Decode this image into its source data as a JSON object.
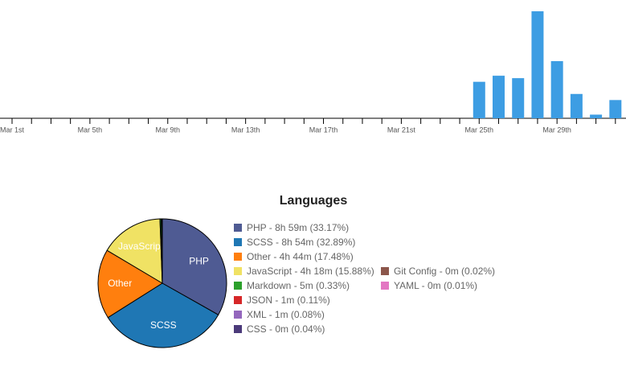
{
  "chart_data": [
    {
      "type": "bar",
      "categories": [
        "Mar 1st",
        null,
        null,
        null,
        "Mar 5th",
        null,
        null,
        null,
        "Mar 9th",
        null,
        null,
        null,
        "Mar 13th",
        null,
        null,
        null,
        "Mar 17th",
        null,
        null,
        null,
        "Mar 21st",
        null,
        null,
        null,
        "Mar 25th",
        null,
        null,
        null,
        "Mar 29th",
        null,
        null,
        null
      ],
      "values": [
        0,
        0,
        0,
        0,
        0,
        0,
        0,
        0,
        0,
        0,
        0,
        0,
        0,
        0,
        0,
        0,
        0,
        0,
        0,
        0,
        0,
        0,
        0,
        0,
        3.0,
        3.5,
        3.3,
        8.8,
        4.7,
        2.0,
        0.3,
        1.5
      ],
      "color": "#3d9de3",
      "ylim": [
        0,
        9
      ]
    },
    {
      "type": "pie",
      "title": "Languages",
      "categories": [
        "PHP",
        "SCSS",
        "Other",
        "JavaScript",
        "Markdown",
        "JSON",
        "XML",
        "CSS",
        "Git Config",
        "YAML"
      ],
      "values": [
        33.17,
        32.89,
        17.48,
        15.88,
        0.33,
        0.11,
        0.08,
        0.04,
        0.02,
        0.01
      ],
      "legend_labels": [
        "PHP - 8h 59m (33.17%)",
        "SCSS - 8h 54m (32.89%)",
        "Other - 4h 44m (17.48%)",
        "JavaScript - 4h 18m (15.88%)",
        "Markdown - 5m (0.33%)",
        "JSON - 1m (0.11%)",
        "XML - 1m (0.08%)",
        "CSS - 0m (0.04%)",
        "Git Config - 0m (0.02%)",
        "YAML - 0m (0.01%)"
      ],
      "colors": [
        "#4f5b93",
        "#1f77b4",
        "#ff7f0e",
        "#f0e264",
        "#2ca02c",
        "#d62728",
        "#9467bd",
        "#4b3a7a",
        "#8c564b",
        "#e377c2"
      ]
    }
  ]
}
